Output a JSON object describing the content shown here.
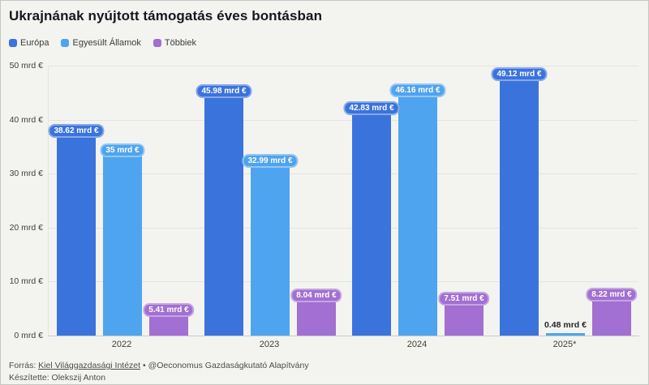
{
  "title": "Ukrajnának nyújtott támogatás éves bontásban",
  "chart_data": {
    "type": "bar",
    "title": "Ukrajnának nyújtott támogatás éves bontásban",
    "categories": [
      "2022",
      "2023",
      "2024",
      "2025*"
    ],
    "series": [
      {
        "name": "Európa",
        "color": "#3b73dd",
        "values": [
          38.62,
          45.98,
          42.83,
          49.12
        ],
        "labels": [
          "38.62 mrd €",
          "45.98 mrd €",
          "42.83 mrd €",
          "49.12 mrd €"
        ]
      },
      {
        "name": "Egyesült Államok",
        "color": "#4fa4ef",
        "values": [
          35,
          32.99,
          46.16,
          0.48
        ],
        "labels": [
          "35 mrd €",
          "32.99 mrd €",
          "46.16 mrd €",
          "0.48 mrd €"
        ]
      },
      {
        "name": "Többiek",
        "color": "#a26fd2",
        "values": [
          5.41,
          8.04,
          7.51,
          8.22
        ],
        "labels": [
          "5.41 mrd €",
          "8.04 mrd €",
          "7.51 mrd €",
          "8.22 mrd €"
        ]
      }
    ],
    "ylabel": "mrd €",
    "xlabel": "",
    "ylim": [
      0,
      50
    ],
    "y_ticks": [
      "0 mrd €",
      "10 mrd €",
      "20 mrd €",
      "30 mrd €",
      "40 mrd €",
      "50 mrd €"
    ],
    "grid": true,
    "legend_position": "top-left"
  },
  "footer": {
    "source_prefix": "Forrás: ",
    "source_link_text": "Kiel Világgazdasági Intézet",
    "source_suffix": " • @Oeconomus Gazdaságkutató Alapítvány",
    "credit": "Készítette: Olekszij Anton"
  }
}
